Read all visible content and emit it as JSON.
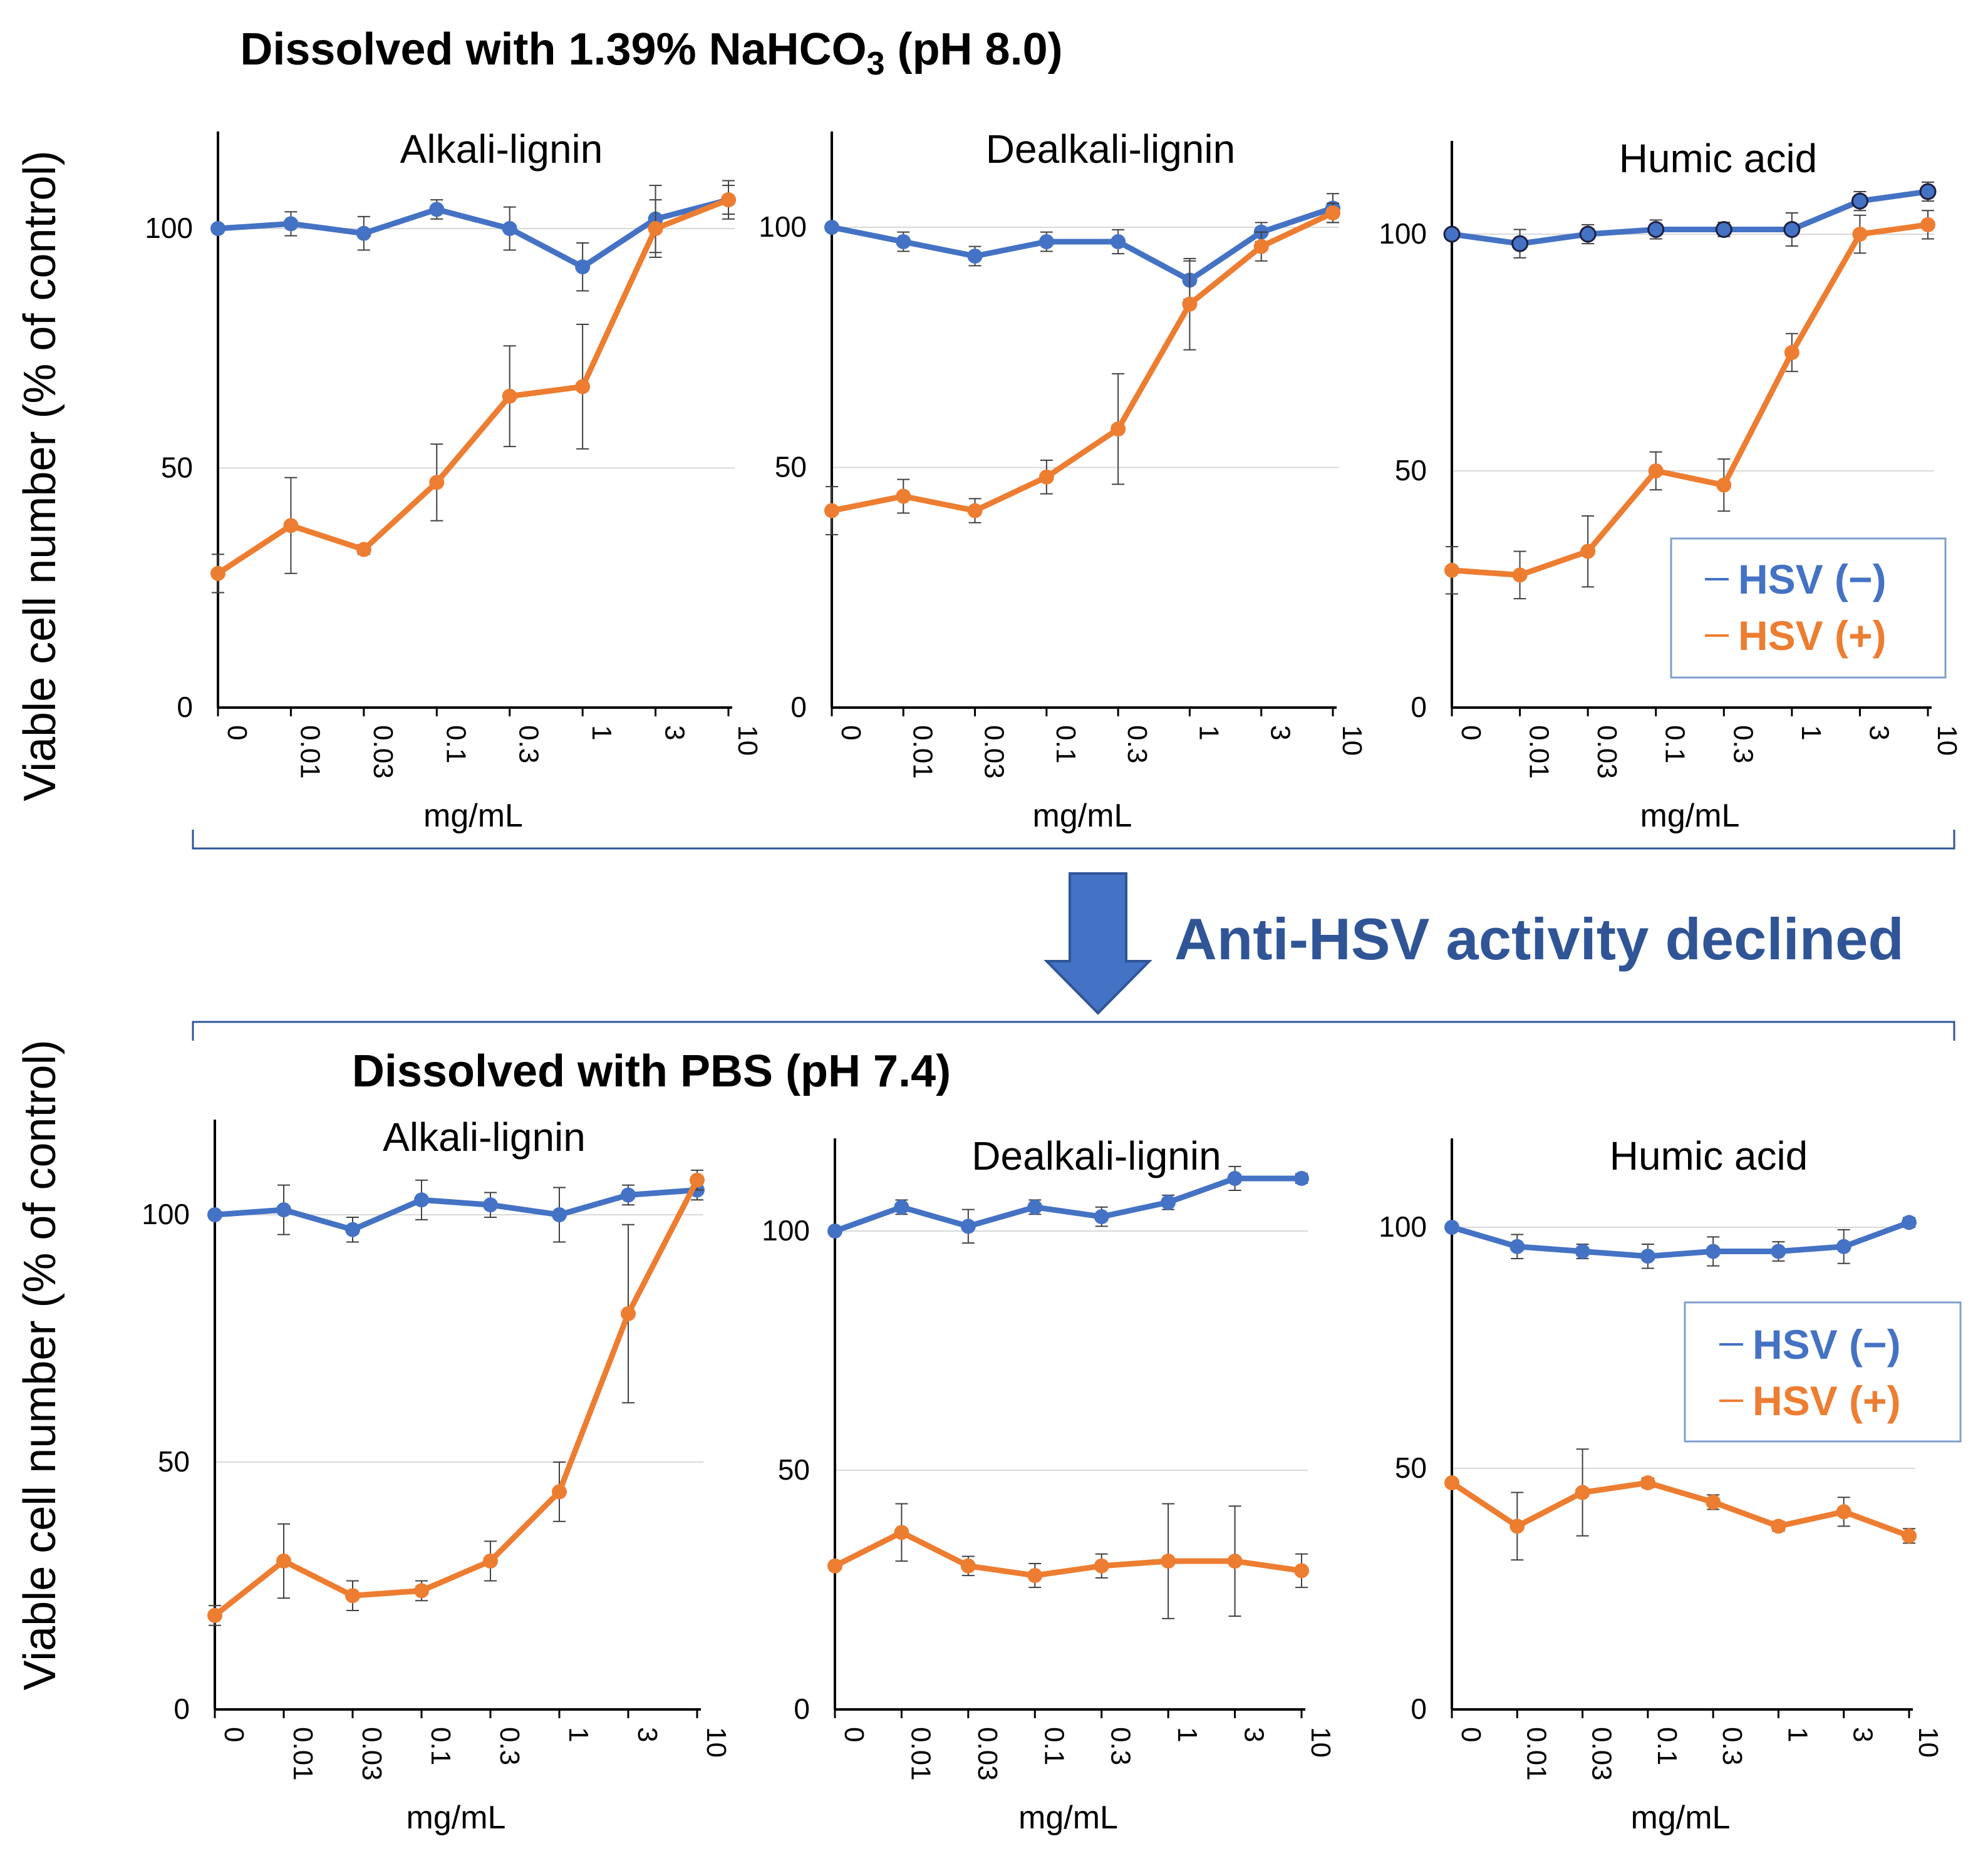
{
  "figure": {
    "top_title_prefix": "Dissolved with 1.39%  NaHCO",
    "top_title_sub": "3",
    "top_title_suffix": " (pH 8.0)",
    "bottom_title": "Dissolved with PBS  (pH 7.4)",
    "y_axis_label": "Viable cell number  (% of control)",
    "banner_text": "Anti-HSV activity declined",
    "colors": {
      "hsv_neg": "#4472c4",
      "hsv_pos": "#ed7d31",
      "banner": "#2f5597",
      "arrow": "#4472c4",
      "arrow_edge": "#2f5597"
    }
  },
  "legend": {
    "hsv_neg": "HSV (−)",
    "hsv_pos": "HSV (+)"
  },
  "chart_data": [
    {
      "type": "line",
      "title": "Alkali-lignin",
      "group": "Dissolved with 1.39% NaHCO3 (pH 8.0)",
      "categories": [
        "0",
        "0.01",
        "0.03",
        "0.1",
        "0.3",
        "1",
        "3",
        "10"
      ],
      "xlabel": "mg/mL",
      "ylabel": "Viable cell number (% of control)",
      "yticks": [
        0,
        50,
        100
      ],
      "ylim": [
        0,
        120
      ],
      "grid": true,
      "series": [
        {
          "name": "HSV (−)",
          "values": [
            100,
            101,
            99,
            104,
            100,
            92,
            102,
            106
          ],
          "errors": [
            0,
            2.5,
            3.5,
            2,
            4.5,
            5,
            7,
            4
          ]
        },
        {
          "name": "HSV (+)",
          "values": [
            28,
            38,
            33,
            47,
            65,
            67,
            100,
            106
          ],
          "errors": [
            4,
            10,
            1,
            8,
            10.5,
            13,
            6,
            3
          ]
        }
      ]
    },
    {
      "type": "line",
      "title": "Dealkali-lignin",
      "group": "Dissolved with 1.39% NaHCO3 (pH 8.0)",
      "categories": [
        "0",
        "0.01",
        "0.03",
        "0.1",
        "0.3",
        "1",
        "3",
        "10"
      ],
      "xlabel": "mg/mL",
      "ylabel": "Viable cell number (% of control)",
      "yticks": [
        0,
        50,
        100
      ],
      "ylim": [
        0,
        120
      ],
      "grid": true,
      "series": [
        {
          "name": "HSV (−)",
          "values": [
            100,
            97,
            94,
            97,
            97,
            89,
            99,
            104
          ],
          "errors": [
            0,
            2,
            2,
            2,
            2.5,
            4,
            2,
            3
          ]
        },
        {
          "name": "HSV (+)",
          "values": [
            41,
            44,
            41,
            48,
            58,
            84,
            96,
            103
          ],
          "errors": [
            5,
            3.5,
            2.5,
            3.5,
            11.5,
            9.5,
            3,
            2
          ]
        }
      ]
    },
    {
      "type": "line",
      "title": "Humic  acid",
      "group": "Dissolved with 1.39% NaHCO3 (pH 8.0)",
      "categories": [
        "0",
        "0.01",
        "0.03",
        "0.1",
        "0.3",
        "1",
        "3",
        "10"
      ],
      "xlabel": "mg/mL",
      "ylabel": "Viable cell number (% of control)",
      "yticks": [
        0,
        50,
        100
      ],
      "ylim": [
        0,
        120
      ],
      "grid": true,
      "series": [
        {
          "name": "HSV (−)",
          "values": [
            100,
            98,
            100,
            101,
            101,
            101,
            107,
            109
          ],
          "errors": [
            0,
            3,
            2,
            2,
            1.5,
            3.5,
            2,
            2
          ]
        },
        {
          "name": "HSV (+)",
          "values": [
            29,
            28,
            33,
            50,
            47,
            75,
            100,
            102
          ],
          "errors": [
            5,
            5,
            7.5,
            4,
            5.5,
            4,
            4,
            3
          ]
        }
      ]
    },
    {
      "type": "line",
      "title": "Alkali-lignin",
      "group": "Dissolved with PBS (pH 7.4)",
      "categories": [
        "0",
        "0.01",
        "0.03",
        "0.1",
        "0.3",
        "1",
        "3",
        "10"
      ],
      "xlabel": "mg/mL",
      "ylabel": "Viable cell number (% of control)",
      "yticks": [
        0,
        50,
        100
      ],
      "ylim": [
        0,
        120
      ],
      "grid": true,
      "series": [
        {
          "name": "HSV (−)",
          "values": [
            100,
            101,
            97,
            103,
            102,
            100,
            104,
            105
          ],
          "errors": [
            0,
            5,
            2.5,
            4,
            2.5,
            5.5,
            2,
            2
          ]
        },
        {
          "name": "HSV (+)",
          "values": [
            19,
            30,
            23,
            24,
            30,
            44,
            80,
            107
          ],
          "errors": [
            2,
            7.5,
            3,
            2,
            4,
            6,
            18,
            2
          ]
        }
      ]
    },
    {
      "type": "line",
      "title": "Dealkali-lignin",
      "group": "Dissolved with PBS (pH 7.4)",
      "categories": [
        "0",
        "0.01",
        "0.03",
        "0.1",
        "0.3",
        "1",
        "3",
        "10"
      ],
      "xlabel": "mg/mL",
      "ylabel": "",
      "yticks": [
        0,
        50,
        100
      ],
      "ylim": [
        0,
        120
      ],
      "grid": true,
      "series": [
        {
          "name": "HSV (−)",
          "values": [
            100,
            105,
            101,
            105,
            103,
            106,
            111,
            111
          ],
          "errors": [
            0,
            1.5,
            3.5,
            1.5,
            2,
            1.5,
            2.5,
            1
          ]
        },
        {
          "name": "HSV (+)",
          "values": [
            30,
            37,
            30,
            28,
            30,
            31,
            31,
            29
          ],
          "errors": [
            0,
            6,
            2,
            2.5,
            2.5,
            12,
            11.5,
            3.5
          ]
        }
      ]
    },
    {
      "type": "line",
      "title": "Humic  acid",
      "group": "Dissolved with PBS (pH 7.4)",
      "categories": [
        "0",
        "0.01",
        "0.03",
        "0.1",
        "0.3",
        "1",
        "3",
        "10"
      ],
      "xlabel": "mg/mL",
      "ylabel": "",
      "yticks": [
        0,
        50,
        100
      ],
      "ylim": [
        0,
        120
      ],
      "grid": true,
      "series": [
        {
          "name": "HSV (−)",
          "values": [
            100,
            96,
            95,
            94,
            95,
            95,
            96,
            101
          ],
          "errors": [
            0,
            2.5,
            1.5,
            2.5,
            3,
            2,
            3.5,
            1
          ]
        },
        {
          "name": "HSV (+)",
          "values": [
            47,
            38,
            45,
            47,
            43,
            38,
            41,
            36
          ],
          "errors": [
            0,
            7,
            9,
            1,
            1.5,
            1,
            3,
            1.5
          ]
        }
      ]
    }
  ]
}
